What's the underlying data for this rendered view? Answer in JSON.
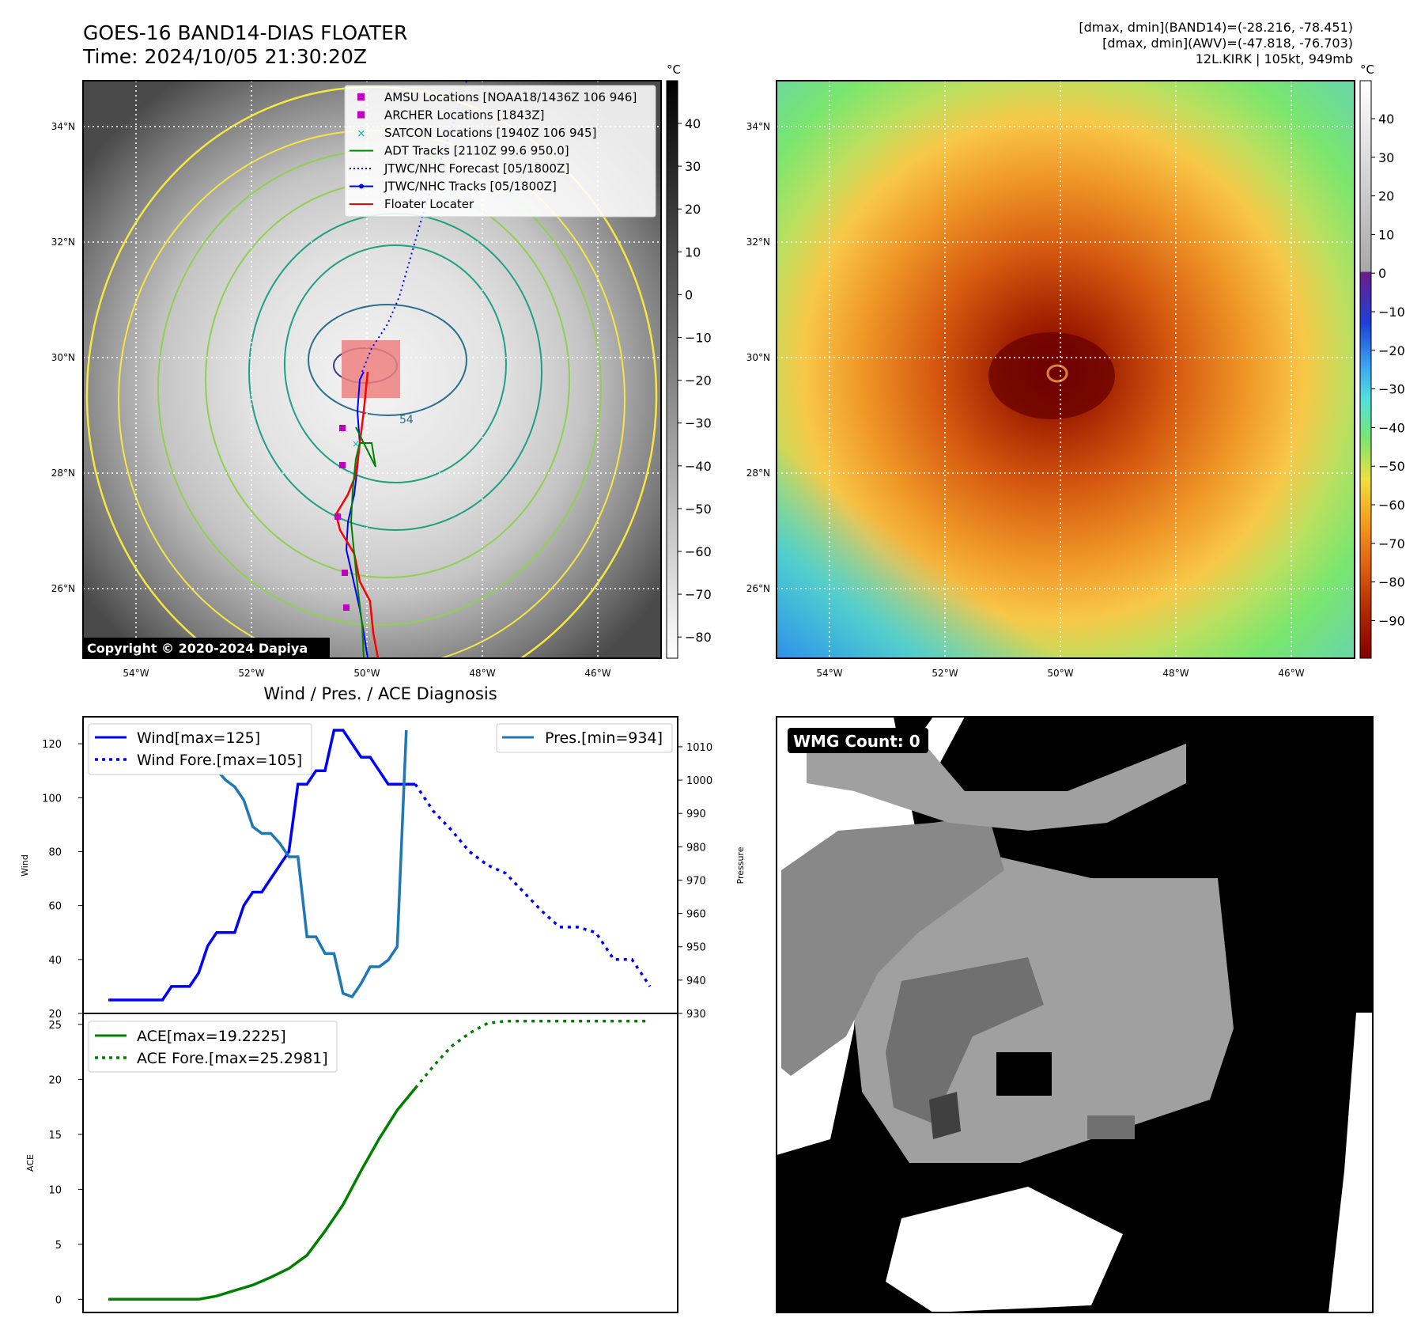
{
  "header": {
    "title_line1": "GOES-16 BAND14-DIAS FLOATER",
    "title_line2": "Time: 2024/10/05 21:30:20Z",
    "info_line1": "[dmax, dmin](BAND14)=(-28.216, -78.451)",
    "info_line2": "[dmax, dmin](AWV)=(-47.818, -76.703)",
    "info_line3": "12L.KIRK | 105kt, 949mb"
  },
  "copyright": "Copyright © 2020-2024 Dapiya",
  "colorbar_unit": "°C",
  "map": {
    "lat_labels": [
      "34°N",
      "32°N",
      "30°N",
      "28°N",
      "26°N"
    ],
    "lon_labels": [
      "54°W",
      "52°W",
      "50°W",
      "48°W",
      "46°W"
    ],
    "contour_label": "54",
    "legend": [
      {
        "label": "AMSU Locations [NOAA18/1436Z 106 946]",
        "color": "#bf00bf",
        "marker": "square"
      },
      {
        "label": "ARCHER Locations [1843Z]",
        "color": "#bf00bf",
        "marker": "square"
      },
      {
        "label": "SATCON Locations [1940Z 106 945]",
        "color": "#00bfbf",
        "marker": "x"
      },
      {
        "label": "ADT Tracks [2110Z 99.6 950.0]",
        "color": "#008000",
        "marker": "line"
      },
      {
        "label": "JTWC/NHC Forecast [05/1800Z]",
        "color": "#0000ff",
        "marker": "dotted"
      },
      {
        "label": "JTWC/NHC Tracks [05/1800Z]",
        "color": "#0000ff",
        "marker": "line-dot"
      },
      {
        "label": "Floater Locater",
        "color": "#ff0000",
        "marker": "line"
      }
    ],
    "gray_cbar_ticks": [
      "40",
      "30",
      "20",
      "10",
      "0",
      "−10",
      "−20",
      "−30",
      "−40",
      "−50",
      "−60",
      "−70",
      "−80"
    ],
    "color_cbar_ticks": [
      "40",
      "30",
      "20",
      "10",
      "0",
      "−10",
      "−20",
      "−30",
      "−40",
      "−50",
      "−60",
      "−70",
      "−80",
      "−90"
    ]
  },
  "diagnosis_title": "Wind / Pres. / ACE Diagnosis",
  "wmg_label": "WMG Count: 0",
  "colors": {
    "wind": "#0000ff",
    "pressure": "#1f77b4",
    "ace": "#008000",
    "floater_box": "#f08080",
    "contour_yellow": "#f5e642",
    "contour_lightgreen": "#90d050",
    "contour_teal": "#20a080",
    "contour_darkteal": "#2a6f8f"
  },
  "chart_data": [
    {
      "type": "line",
      "title": "",
      "ylabel": "Wind",
      "y2label": "Pressure",
      "ylim": [
        20,
        130
      ],
      "y2lim": [
        930,
        1019
      ],
      "y_ticks": [
        20,
        40,
        60,
        80,
        100,
        120
      ],
      "y2_ticks": [
        930,
        940,
        950,
        960,
        970,
        980,
        990,
        1000,
        1010
      ],
      "legend_left": [
        "Wind[max=125]",
        "Wind Fore.[max=105]"
      ],
      "legend_right": [
        "Pres.[min=934]"
      ],
      "series": [
        {
          "name": "Wind[max=125]",
          "style": "solid",
          "axis": "left",
          "x": [
            0,
            1,
            2,
            3,
            4,
            5,
            6,
            7,
            8,
            9,
            10,
            11,
            12,
            13,
            14,
            15,
            16,
            17,
            18,
            19,
            20,
            21,
            22,
            23,
            24,
            25,
            26,
            27,
            28,
            29,
            30,
            31,
            32,
            33,
            34
          ],
          "values": [
            25,
            25,
            25,
            25,
            25,
            25,
            25,
            30,
            30,
            30,
            35,
            45,
            50,
            50,
            50,
            60,
            65,
            65,
            70,
            75,
            80,
            105,
            105,
            110,
            110,
            125,
            125,
            120,
            115,
            115,
            110,
            105,
            105,
            105,
            105
          ]
        },
        {
          "name": "Wind Fore.[max=105]",
          "style": "dotted",
          "axis": "left",
          "x": [
            34,
            36,
            38,
            40,
            42,
            44,
            46,
            48,
            50,
            52,
            54,
            56,
            58,
            60
          ],
          "values": [
            105,
            95,
            88,
            80,
            75,
            72,
            65,
            58,
            52,
            52,
            50,
            40,
            40,
            30
          ]
        },
        {
          "name": "Pres.[min=934]",
          "style": "solid",
          "axis": "right",
          "x": [
            2,
            4,
            6,
            8,
            10,
            12,
            13,
            14,
            15,
            16,
            17,
            18,
            19,
            20,
            21,
            22,
            23,
            24,
            25,
            26,
            27,
            28,
            29,
            30,
            31,
            32,
            33
          ],
          "values": [
            1010,
            1010,
            1010,
            1010,
            1008,
            1003,
            1000,
            998,
            994,
            986,
            984,
            984,
            981,
            977,
            977,
            953,
            953,
            948,
            948,
            936,
            935,
            939,
            944,
            944,
            946,
            950,
            1015
          ]
        }
      ]
    },
    {
      "type": "line",
      "title": "",
      "xlabel": "",
      "ylabel": "ACE",
      "ylim": [
        -1.2,
        26
      ],
      "y_ticks": [
        0,
        5,
        10,
        15,
        20,
        25
      ],
      "legend": [
        "ACE[max=19.2225]",
        "ACE Fore.[max=25.2981]"
      ],
      "series": [
        {
          "name": "ACE[max=19.2225]",
          "style": "solid",
          "x": [
            0,
            2,
            4,
            6,
            8,
            10,
            12,
            14,
            16,
            18,
            20,
            22,
            24,
            26,
            28,
            30,
            32,
            34
          ],
          "values": [
            0,
            0,
            0,
            0,
            0,
            0,
            0.3,
            0.8,
            1.3,
            2,
            2.8,
            4,
            6.2,
            8.6,
            11.7,
            14.6,
            17.2,
            19.2
          ]
        },
        {
          "name": "ACE Fore.[max=25.2981]",
          "style": "dotted",
          "x": [
            34,
            36,
            38,
            40,
            42,
            44,
            46,
            48,
            50,
            52,
            54,
            56,
            58,
            60
          ],
          "values": [
            19.2,
            21.2,
            23,
            24.2,
            25.1,
            25.3,
            25.3,
            25.3,
            25.3,
            25.3,
            25.3,
            25.3,
            25.3,
            25.3
          ]
        }
      ]
    }
  ]
}
